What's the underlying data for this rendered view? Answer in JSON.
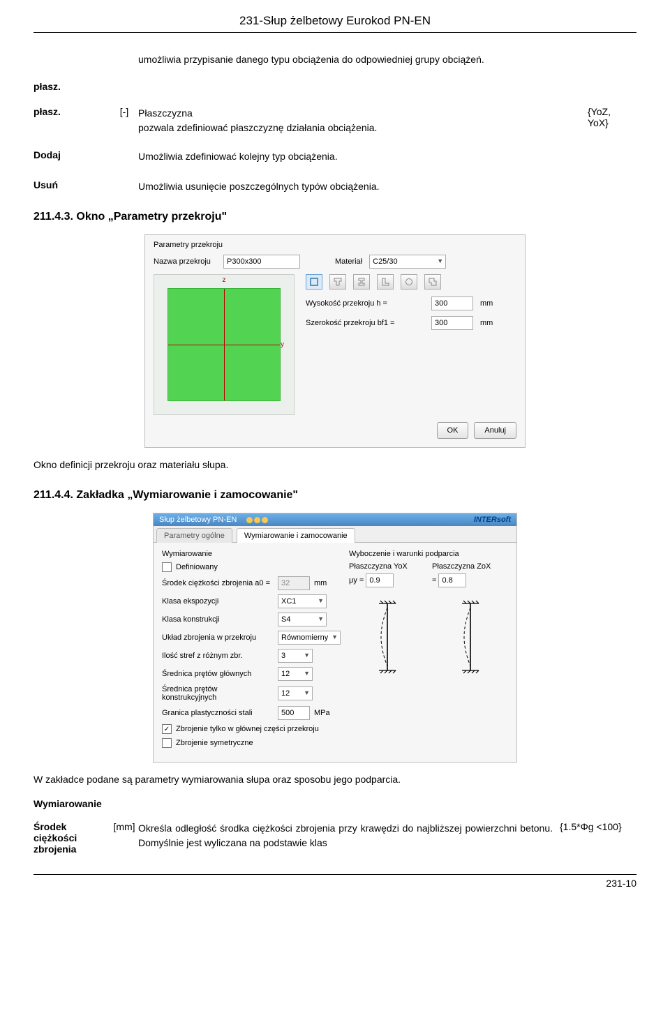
{
  "header": "231-Słup żelbetowy Eurokod PN-EN",
  "intro": "umożliwia przypisanie danego typu obciążenia do odpowiedniej grupy obciążeń.",
  "defs": [
    {
      "label": "płasz.",
      "col2": "",
      "desc": "",
      "extra": ""
    },
    {
      "label": "płasz.",
      "col2": "[-]",
      "desc": "Płaszczyzna\npozwala zdefiniować płaszczyznę działania obciążenia.",
      "extra": "{YoZ,\nYoX}"
    },
    {
      "label": "Dodaj",
      "col2": "",
      "desc": "Umożliwia zdefiniować kolejny typ obciążenia.",
      "extra": ""
    },
    {
      "label": "Usuń",
      "col2": "",
      "desc": "Umożliwia usunięcie poszczególnych typów obciążenia.",
      "extra": "",
      "spacer": true
    }
  ],
  "section43": "211.4.3. Okno „Parametry przekroju\"",
  "dlg1": {
    "title": "Parametry przekroju",
    "name_lbl": "Nazwa przekroju",
    "name_val": "P300x300",
    "mat_lbl": "Materiał",
    "mat_val": "C25/30",
    "h_lbl": "Wysokość przekroju h =",
    "h_val": "300",
    "bf1_lbl": "Szerokość przekroju bf1 =",
    "bf1_val": "300",
    "unit": "mm",
    "ok": "OK",
    "cancel": "Anuluj",
    "axis_z": "z",
    "axis_y": "y"
  },
  "text_after_dlg1": "Okno definicji przekroju oraz materiału słupa.",
  "section44": "211.4.4. Zakładka „Wymiarowanie i zamocowanie\"",
  "widget": {
    "title": "Słup żelbetowy PN-EN",
    "brand": "INTERsoft",
    "tab1": "Parametry ogólne",
    "tab2": "Wymiarowanie i zamocowanie",
    "left_title": "Wymiarowanie",
    "definiowany": "Definiowany",
    "a0_lbl": "Środek ciężkości zbrojenia a0 =",
    "a0_val": "32",
    "a0_unit": "mm",
    "klasa_eksp_lbl": "Klasa ekspozycji",
    "klasa_eksp_val": "XC1",
    "klasa_kon_lbl": "Klasa konstrukcji",
    "klasa_kon_val": "S4",
    "uklad_lbl": "Układ zbrojenia w przekroju",
    "uklad_val": "Równomierny",
    "ilosc_lbl": "Ilość stref z różnym zbr.",
    "ilosc_val": "3",
    "sred_gl_lbl": "Średnica prętów głównych",
    "sred_gl_val": "12",
    "sred_ko_lbl": "Średnica prętów konstrukcyjnych",
    "sred_ko_val": "12",
    "granica_lbl": "Granica plastyczności stali",
    "granica_val": "500",
    "granica_unit": "MPa",
    "zbroj_gl": "Zbrojenie tylko w głównej części przekroju",
    "zbroj_sym": "Zbrojenie symetryczne",
    "right_title": "Wyboczenie i warunki podparcia",
    "colYoX_title": "Płaszczyzna YoX",
    "colZoX_title": "Płaszczyzna ZoX",
    "mu_y_lbl": "μy =",
    "mu_y_val": "0.9",
    "mu_eq": "=",
    "mu_val2": "0.8"
  },
  "text_after_widget": "W zakładce podane są parametry wymiarowania słupa oraz sposobu jego podparcia.",
  "wym_header": "Wymiarowanie",
  "footer_row": {
    "label": "Środek ciężkości zbrojenia",
    "unit": "[mm]",
    "desc": "Określa odległość środka ciężkości zbrojenia przy krawędzi do najbliższej powierzchni betonu. Domyślnie jest wyliczana na podstawie klas",
    "extra": "{1.5*Φg <100}"
  },
  "page_num": "231-10"
}
